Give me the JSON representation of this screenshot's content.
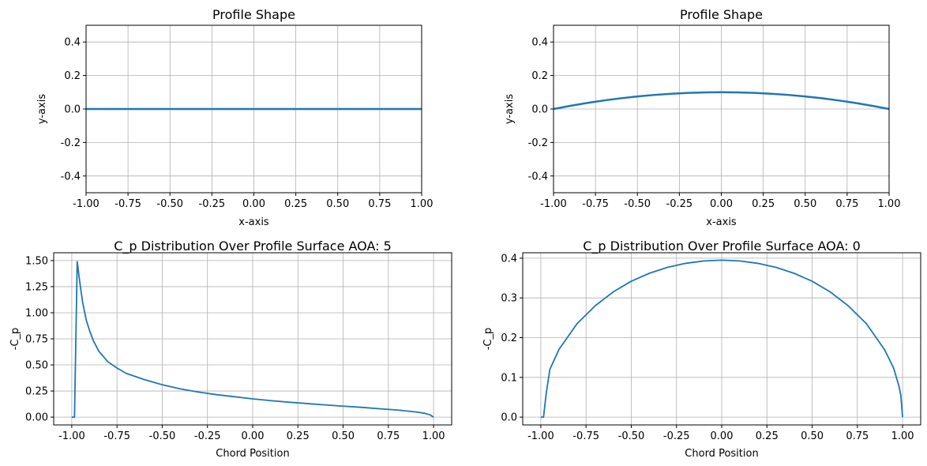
{
  "chart_data": [
    {
      "type": "line",
      "title": "Profile Shape",
      "xlabel": "x-axis",
      "ylabel": "y-axis",
      "xlim": [
        -1.0,
        1.0
      ],
      "ylim": [
        -0.5,
        0.5
      ],
      "xticks": [
        "-1.00",
        "-0.75",
        "-0.50",
        "-0.25",
        "0.00",
        "0.25",
        "0.50",
        "0.75",
        "1.00"
      ],
      "yticks": [
        "-0.4",
        "-0.2",
        "0.0",
        "0.2",
        "0.4"
      ],
      "grid": true,
      "color": "#1f77b4",
      "series": [
        {
          "x": [
            -1.0,
            -0.5,
            0.0,
            0.5,
            1.0
          ],
          "y": [
            0,
            0,
            0,
            0,
            0
          ]
        }
      ]
    },
    {
      "type": "line",
      "title": "Profile Shape",
      "xlabel": "x-axis",
      "ylabel": "y-axis",
      "xlim": [
        -1.0,
        1.0
      ],
      "ylim": [
        -0.5,
        0.5
      ],
      "xticks": [
        "-1.00",
        "-0.75",
        "-0.50",
        "-0.25",
        "0.00",
        "0.25",
        "0.50",
        "0.75",
        "1.00"
      ],
      "yticks": [
        "-0.4",
        "-0.2",
        "0.0",
        "0.2",
        "0.4"
      ],
      "grid": true,
      "color": "#1f77b4",
      "series": [
        {
          "x": [
            -1.0,
            -0.9,
            -0.8,
            -0.7,
            -0.6,
            -0.5,
            -0.4,
            -0.3,
            -0.2,
            -0.1,
            0.0,
            0.1,
            0.2,
            0.3,
            0.4,
            0.5,
            0.6,
            0.7,
            0.8,
            0.9,
            1.0
          ],
          "y": [
            0.0,
            0.019,
            0.036,
            0.051,
            0.064,
            0.075,
            0.084,
            0.091,
            0.096,
            0.099,
            0.1,
            0.099,
            0.096,
            0.091,
            0.084,
            0.075,
            0.064,
            0.051,
            0.036,
            0.019,
            0.0
          ]
        }
      ]
    },
    {
      "type": "line",
      "title": "C_p Distribution Over Profile Surface AOA: 5",
      "xlabel": "Chord Position",
      "ylabel": "-C_p",
      "xlim": [
        -1.1,
        1.1
      ],
      "ylim": [
        -0.075,
        1.575
      ],
      "xticks": [
        "-1.00",
        "-0.75",
        "-0.50",
        "-0.25",
        "0.00",
        "0.25",
        "0.50",
        "0.75",
        "1.00"
      ],
      "yticks": [
        "0.00",
        "0.25",
        "0.50",
        "0.75",
        "1.00",
        "1.25",
        "1.50"
      ],
      "grid": true,
      "color": "#1f77b4",
      "series": [
        {
          "x": [
            -1.0,
            -0.985,
            -0.97,
            -0.96,
            -0.95,
            -0.94,
            -0.92,
            -0.9,
            -0.88,
            -0.85,
            -0.8,
            -0.75,
            -0.7,
            -0.6,
            -0.5,
            -0.4,
            -0.3,
            -0.2,
            -0.1,
            0.0,
            0.1,
            0.2,
            0.3,
            0.4,
            0.5,
            0.6,
            0.7,
            0.8,
            0.9,
            0.95,
            0.98,
            1.0
          ],
          "y": [
            0.0,
            0.0,
            1.49,
            1.35,
            1.22,
            1.1,
            0.93,
            0.82,
            0.73,
            0.63,
            0.53,
            0.47,
            0.42,
            0.36,
            0.31,
            0.27,
            0.24,
            0.215,
            0.195,
            0.175,
            0.158,
            0.143,
            0.13,
            0.117,
            0.105,
            0.094,
            0.08,
            0.068,
            0.05,
            0.037,
            0.022,
            0.0
          ]
        }
      ]
    },
    {
      "type": "line",
      "title": "C_p Distribution Over Profile Surface AOA: 0",
      "xlabel": "Chord Position",
      "ylabel": "-C_p",
      "xlim": [
        -1.1,
        1.1
      ],
      "ylim": [
        -0.0197,
        0.4137
      ],
      "xticks": [
        "-1.00",
        "-0.75",
        "-0.50",
        "-0.25",
        "0.00",
        "0.25",
        "0.50",
        "0.75",
        "1.00"
      ],
      "yticks": [
        "0.0",
        "0.1",
        "0.2",
        "0.3",
        "0.4"
      ],
      "grid": true,
      "color": "#1f77b4",
      "series": [
        {
          "x": [
            -1.0,
            -0.985,
            -0.97,
            -0.95,
            -0.9,
            -0.8,
            -0.7,
            -0.6,
            -0.5,
            -0.4,
            -0.3,
            -0.2,
            -0.1,
            0.0,
            0.1,
            0.2,
            0.3,
            0.4,
            0.5,
            0.6,
            0.7,
            0.8,
            0.9,
            0.95,
            0.98,
            0.99,
            1.0
          ],
          "y": [
            0.0,
            0.0,
            0.06,
            0.12,
            0.17,
            0.235,
            0.28,
            0.315,
            0.342,
            0.362,
            0.377,
            0.387,
            0.393,
            0.395,
            0.393,
            0.387,
            0.377,
            0.362,
            0.342,
            0.315,
            0.28,
            0.235,
            0.17,
            0.124,
            0.078,
            0.055,
            0.0
          ]
        }
      ]
    }
  ]
}
